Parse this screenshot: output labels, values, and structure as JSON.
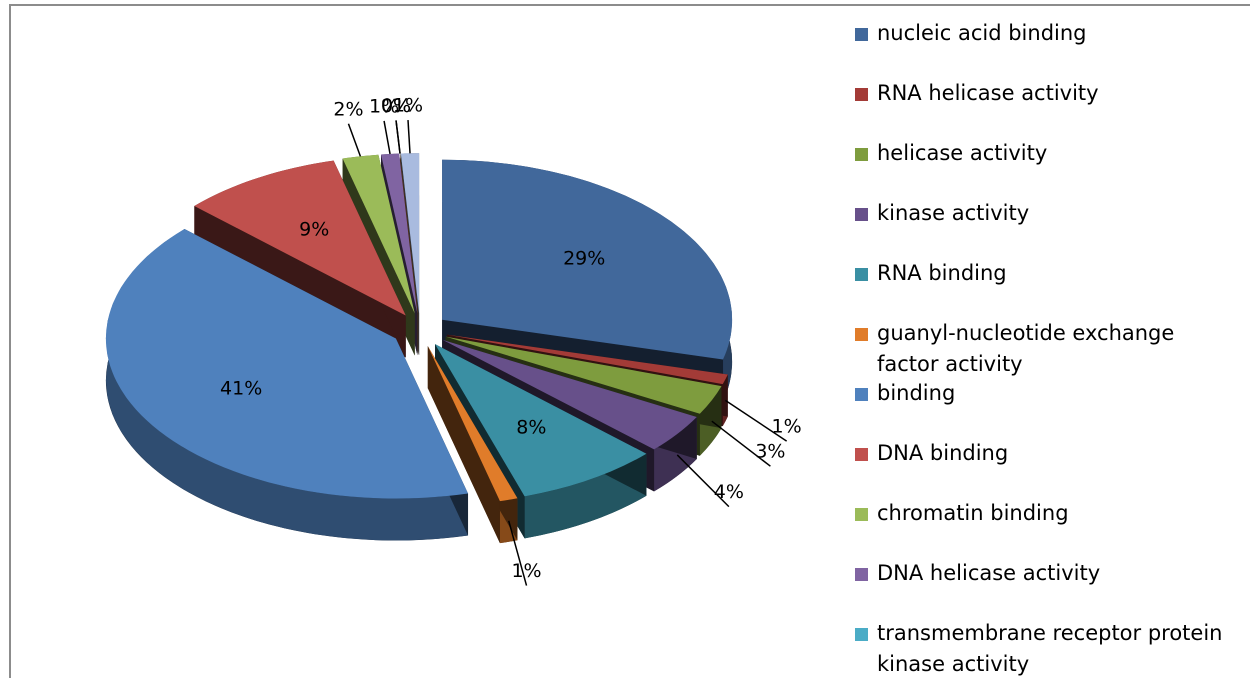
{
  "chart_data": {
    "type": "pie",
    "categories": [
      "nucleic acid binding",
      "RNA helicase activity",
      "helicase activity",
      "kinase activity",
      "RNA binding",
      "guanyl-nucleotide exchange factor activity",
      "binding",
      "DNA binding",
      "chromatin binding",
      "DNA helicase activity",
      "transmembrane receptor protein kinase activity",
      null,
      null
    ],
    "values": [
      29,
      1,
      3,
      4,
      8,
      1,
      41,
      9,
      2,
      1,
      0,
      0,
      1
    ],
    "value_labels": [
      "29%",
      "1%",
      "3%",
      "4%",
      "8%",
      "1%",
      "41%",
      "9%",
      "2%",
      "1%",
      "0%",
      "0%",
      "1%"
    ],
    "colors": [
      "#41689b",
      "#a33b37",
      "#7e9c3e",
      "#67508a",
      "#3a8fa3",
      "#e07c2a",
      "#4f81bd",
      "#c0504d",
      "#9bbb59",
      "#8064a2",
      "#4bacc6",
      "#f79646",
      "#a9bbdf"
    ],
    "legend": "right"
  }
}
